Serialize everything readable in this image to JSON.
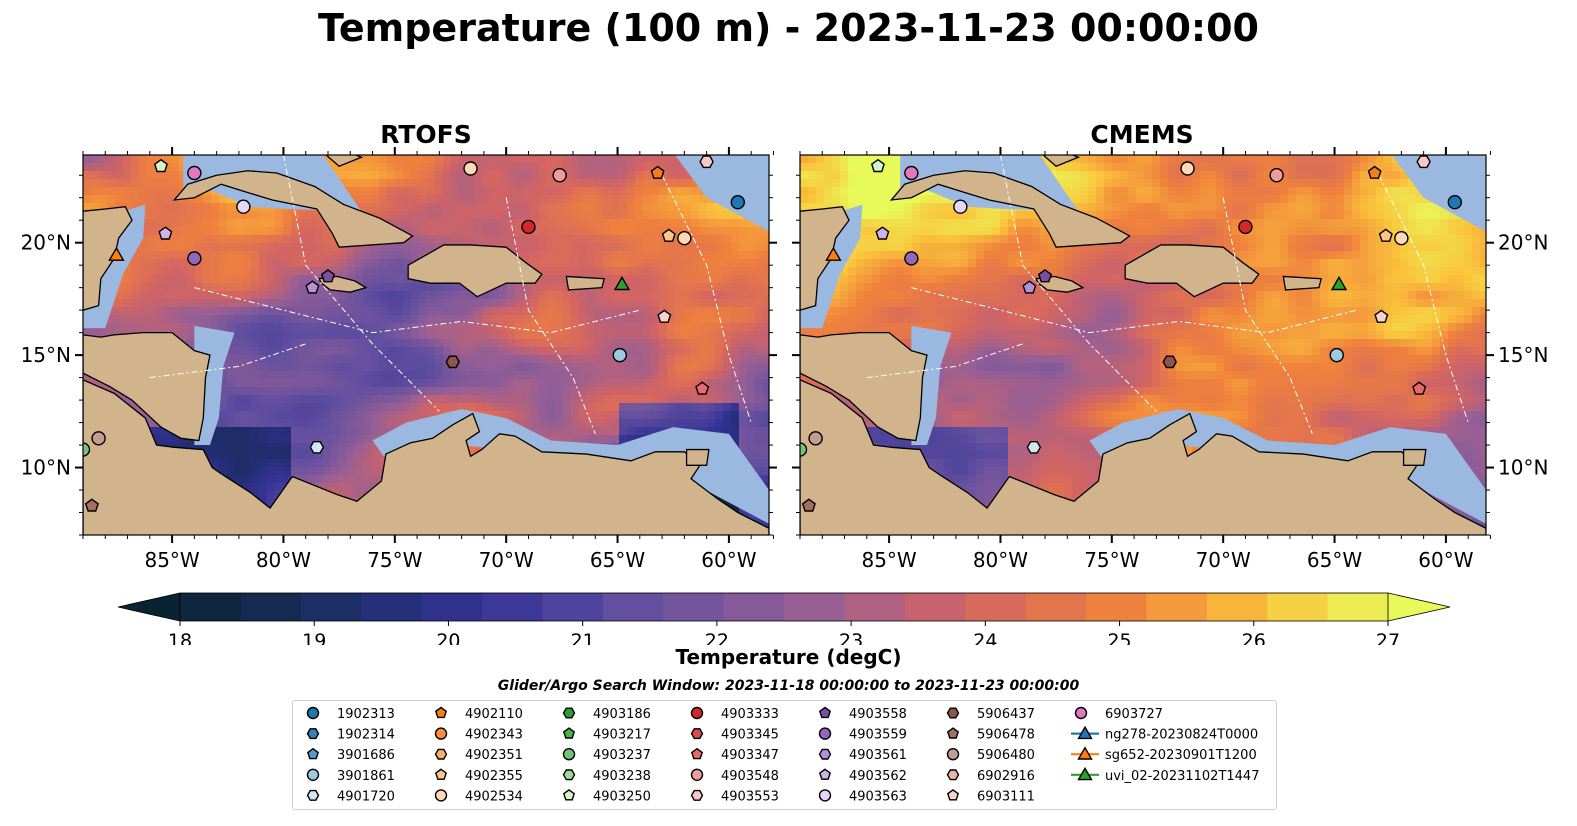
{
  "title": "Temperature (100 m) - 2023-11-23 00:00:00",
  "panels": [
    {
      "title": "RTOFS"
    },
    {
      "title": "CMEMS"
    }
  ],
  "map": {
    "lon_ticks": [
      "85°W",
      "80°W",
      "75°W",
      "70°W",
      "65°W",
      "60°W"
    ],
    "lat_ticks": [
      "20°N",
      "15°N",
      "10°N"
    ],
    "land_color": "#d2b48c",
    "shelf_color": "#9ab8e0",
    "deep_color": "#0b2535"
  },
  "colorbar": {
    "label": "Temperature (degC)",
    "ticks": [
      "18",
      "19",
      "20",
      "21",
      "22",
      "23",
      "24",
      "25",
      "26",
      "27"
    ],
    "min": 18,
    "max": 27,
    "cmap": "thermal",
    "extend": "both"
  },
  "search_window": "Glider/Argo Search Window: 2023-11-18 00:00:00 to 2023-11-23 00:00:00",
  "legend": [
    {
      "label": "1902313",
      "marker": "circle",
      "color": "#1f77b4"
    },
    {
      "label": "1902314",
      "marker": "hexagon",
      "color": "#3b7fb6"
    },
    {
      "label": "3901686",
      "marker": "pentagon",
      "color": "#5a97cc"
    },
    {
      "label": "3901861",
      "marker": "circle",
      "color": "#9ecae1"
    },
    {
      "label": "4901720",
      "marker": "hexagon",
      "color": "#cfe6f5"
    },
    {
      "label": "4902110",
      "marker": "pentagon",
      "color": "#f57f17"
    },
    {
      "label": "4902343",
      "marker": "circle",
      "color": "#fd8d3c"
    },
    {
      "label": "4902351",
      "marker": "hexagon",
      "color": "#fdae6b"
    },
    {
      "label": "4902355",
      "marker": "pentagon",
      "color": "#fdc48e"
    },
    {
      "label": "4902534",
      "marker": "circle",
      "color": "#fdd9b5"
    },
    {
      "label": "4903186",
      "marker": "hexagon",
      "color": "#2ca02c"
    },
    {
      "label": "4903217",
      "marker": "pentagon",
      "color": "#4caf50"
    },
    {
      "label": "4903237",
      "marker": "circle",
      "color": "#74c476"
    },
    {
      "label": "4903238",
      "marker": "hexagon",
      "color": "#a1d99b"
    },
    {
      "label": "4903250",
      "marker": "pentagon",
      "color": "#d5f5c8"
    },
    {
      "label": "4903333",
      "marker": "circle",
      "color": "#d62728"
    },
    {
      "label": "4903345",
      "marker": "hexagon",
      "color": "#de4b4b"
    },
    {
      "label": "4903347",
      "marker": "pentagon",
      "color": "#e7696b"
    },
    {
      "label": "4903548",
      "marker": "circle",
      "color": "#f19c9c"
    },
    {
      "label": "4903553",
      "marker": "hexagon",
      "color": "#f8c8c8"
    },
    {
      "label": "4903558",
      "marker": "pentagon",
      "color": "#7b4fa3"
    },
    {
      "label": "4903559",
      "marker": "circle",
      "color": "#9467bd"
    },
    {
      "label": "4903561",
      "marker": "hexagon",
      "color": "#b292d6"
    },
    {
      "label": "4903562",
      "marker": "pentagon",
      "color": "#ccb3ea"
    },
    {
      "label": "4903563",
      "marker": "circle",
      "color": "#e6d6f7"
    },
    {
      "label": "5906437",
      "marker": "hexagon",
      "color": "#8c564b"
    },
    {
      "label": "5906478",
      "marker": "pentagon",
      "color": "#a56e63"
    },
    {
      "label": "5906480",
      "marker": "circle",
      "color": "#c49c94"
    },
    {
      "label": "6902916",
      "marker": "hexagon",
      "color": "#e8b5a8"
    },
    {
      "label": "6903111",
      "marker": "pentagon",
      "color": "#f8d5cc"
    },
    {
      "label": "6903727",
      "marker": "circle",
      "color": "#e377c2"
    },
    {
      "label": "ng278-20230824T0000",
      "marker": "triangle-line",
      "color": "#1f77b4"
    },
    {
      "label": "sg652-20230901T1200",
      "marker": "triangle-line",
      "color": "#ff7f0e"
    },
    {
      "label": "uvi_02-20231102T1447",
      "marker": "triangle-line",
      "color": "#2ca02c"
    }
  ]
}
